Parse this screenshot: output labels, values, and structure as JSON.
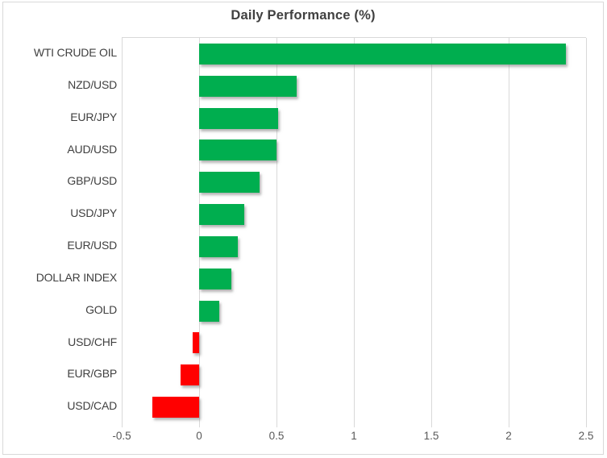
{
  "chart_data": {
    "type": "bar",
    "orientation": "horizontal",
    "title": "Daily Performance (%)",
    "categories": [
      "WTI CRUDE OIL",
      "NZD/USD",
      "EUR/JPY",
      "AUD/USD",
      "GBP/USD",
      "USD/JPY",
      "EUR/USD",
      "DOLLAR INDEX",
      "GOLD",
      "USD/CHF",
      "EUR/GBP",
      "USD/CAD"
    ],
    "values": [
      2.37,
      0.63,
      0.51,
      0.5,
      0.39,
      0.29,
      0.25,
      0.21,
      0.13,
      -0.04,
      -0.12,
      -0.3
    ],
    "xlabel": "",
    "ylabel": "",
    "xlim": [
      -0.5,
      2.5
    ],
    "x_ticks": [
      -0.5,
      0,
      0.5,
      1,
      1.5,
      2,
      2.5
    ],
    "x_tick_labels": [
      "-0.5",
      "0",
      "0.5",
      "1",
      "1.5",
      "2",
      "2.5"
    ],
    "grid": true,
    "legend": false,
    "colors": {
      "positive": "#00AE4F",
      "negative": "#FF0000",
      "gridline": "#D9D9D9",
      "tick_label": "#595959",
      "category_label": "#3F3F3F",
      "title": "#404040"
    }
  }
}
